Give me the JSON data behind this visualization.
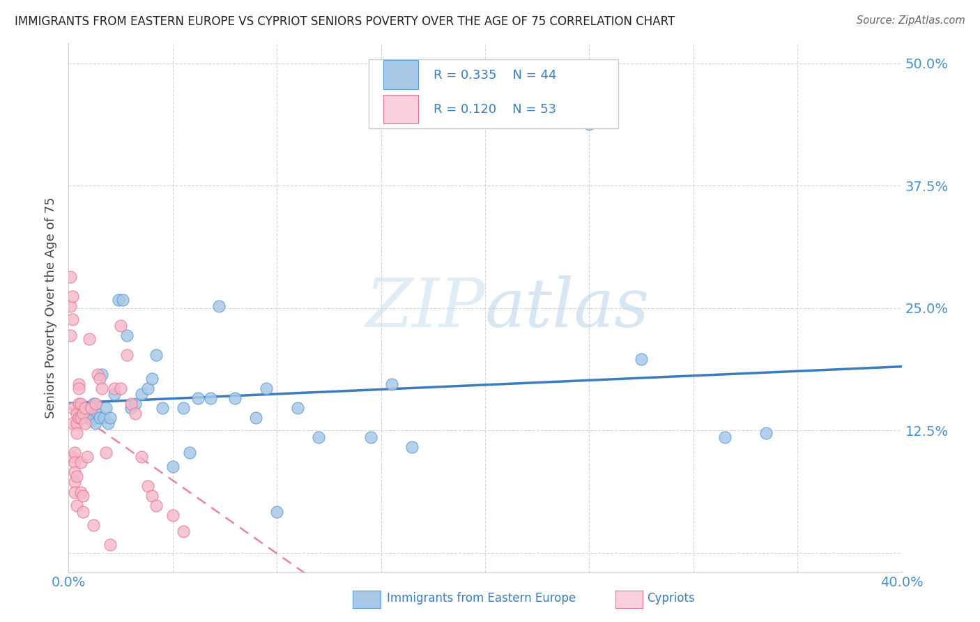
{
  "title": "IMMIGRANTS FROM EASTERN EUROPE VS CYPRIOT SENIORS POVERTY OVER THE AGE OF 75 CORRELATION CHART",
  "source": "Source: ZipAtlas.com",
  "ylabel": "Seniors Poverty Over the Age of 75",
  "xlim": [
    0.0,
    0.4
  ],
  "ylim": [
    -0.02,
    0.52
  ],
  "blue_color": "#a8c8e8",
  "blue_edge": "#5b9bd5",
  "pink_color": "#f4b8c8",
  "pink_edge": "#e87090",
  "trend_blue_color": "#3a7dbf",
  "trend_pink_color": "#e05070",
  "watermark": "ZIPatlas",
  "legend_box_color": "#d0e4f5",
  "legend_pink_box_color": "#f9d0dc",
  "blue_x": [
    0.006,
    0.007,
    0.008,
    0.01,
    0.011,
    0.012,
    0.013,
    0.014,
    0.015,
    0.016,
    0.017,
    0.018,
    0.019,
    0.02,
    0.022,
    0.024,
    0.026,
    0.028,
    0.03,
    0.032,
    0.035,
    0.038,
    0.04,
    0.042,
    0.045,
    0.05,
    0.055,
    0.058,
    0.062,
    0.068,
    0.072,
    0.08,
    0.09,
    0.095,
    0.1,
    0.11,
    0.12,
    0.145,
    0.155,
    0.165,
    0.25,
    0.275,
    0.315,
    0.335
  ],
  "blue_y": [
    0.145,
    0.14,
    0.138,
    0.145,
    0.135,
    0.152,
    0.132,
    0.142,
    0.138,
    0.182,
    0.138,
    0.148,
    0.132,
    0.138,
    0.162,
    0.258,
    0.258,
    0.222,
    0.148,
    0.152,
    0.162,
    0.168,
    0.178,
    0.202,
    0.148,
    0.088,
    0.148,
    0.102,
    0.158,
    0.158,
    0.252,
    0.158,
    0.138,
    0.168,
    0.042,
    0.148,
    0.118,
    0.118,
    0.172,
    0.108,
    0.438,
    0.198,
    0.118,
    0.122
  ],
  "pink_x": [
    0.001,
    0.001,
    0.001,
    0.002,
    0.002,
    0.002,
    0.002,
    0.002,
    0.003,
    0.003,
    0.003,
    0.003,
    0.003,
    0.004,
    0.004,
    0.004,
    0.004,
    0.004,
    0.005,
    0.005,
    0.005,
    0.005,
    0.006,
    0.006,
    0.006,
    0.006,
    0.007,
    0.007,
    0.007,
    0.008,
    0.008,
    0.009,
    0.01,
    0.011,
    0.012,
    0.013,
    0.014,
    0.015,
    0.016,
    0.018,
    0.02,
    0.022,
    0.025,
    0.025,
    0.028,
    0.03,
    0.032,
    0.035,
    0.038,
    0.04,
    0.042,
    0.05,
    0.055
  ],
  "pink_y": [
    0.282,
    0.252,
    0.222,
    0.262,
    0.238,
    0.148,
    0.132,
    0.098,
    0.102,
    0.092,
    0.082,
    0.072,
    0.062,
    0.142,
    0.132,
    0.122,
    0.078,
    0.048,
    0.172,
    0.168,
    0.152,
    0.138,
    0.152,
    0.138,
    0.092,
    0.062,
    0.142,
    0.058,
    0.042,
    0.148,
    0.132,
    0.098,
    0.218,
    0.148,
    0.028,
    0.152,
    0.182,
    0.178,
    0.168,
    0.102,
    0.008,
    0.168,
    0.232,
    0.168,
    0.202,
    0.152,
    0.142,
    0.098,
    0.068,
    0.058,
    0.048,
    0.038,
    0.022
  ]
}
